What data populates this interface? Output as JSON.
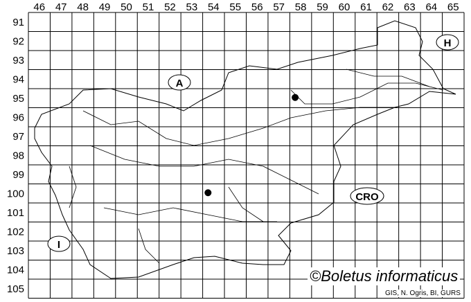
{
  "map": {
    "column_labels": [
      "46",
      "47",
      "48",
      "49",
      "50",
      "51",
      "52",
      "53",
      "54",
      "55",
      "56",
      "57",
      "58",
      "59",
      "60",
      "61",
      "62",
      "63",
      "64",
      "65"
    ],
    "row_labels": [
      "91",
      "92",
      "93",
      "94",
      "95",
      "96",
      "97",
      "98",
      "99",
      "100",
      "101",
      "102",
      "103",
      "104",
      "105"
    ],
    "country_labels": {
      "austria": "A",
      "hungary": "H",
      "croatia": "CRO",
      "italy": "I"
    },
    "occurrences": [
      {
        "column": "58",
        "row": "95"
      },
      {
        "column": "54",
        "row": "100"
      }
    ],
    "colors": {
      "lines": "#000000",
      "background": "#ffffff",
      "dots": "#000000"
    }
  },
  "credit": "©Boletus informaticus",
  "source": "GIS, N. Ogris, BI, GURS"
}
